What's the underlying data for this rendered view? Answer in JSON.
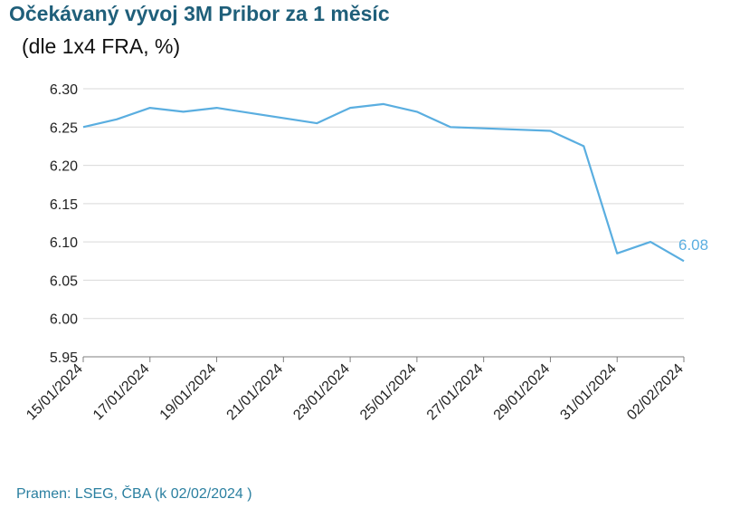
{
  "colors": {
    "title": "#1f5f7a",
    "line": "#5aaee0",
    "grid": "#d9d9d9",
    "source": "#2a7fa0"
  },
  "chart_data": {
    "type": "line",
    "title": "Očekávaný vývoj 3M Pribor za 1 měsíc",
    "subtitle": "(dle 1x4 FRA, %)",
    "source": "Pramen: LSEG, ČBA (k 02/02/2024 )",
    "ylim": [
      5.95,
      6.3
    ],
    "y_ticks": [
      "6.30",
      "6.25",
      "6.20",
      "6.15",
      "6.10",
      "6.05",
      "6.00",
      "5.95"
    ],
    "x_tick_labels": [
      "15/01/2024",
      "17/01/2024",
      "19/01/2024",
      "21/01/2024",
      "23/01/2024",
      "25/01/2024",
      "27/01/2024",
      "29/01/2024",
      "31/01/2024",
      "02/02/2024"
    ],
    "grid": "horizontal",
    "series": [
      {
        "x": [
          "15/01/2024",
          "16/01/2024",
          "17/01/2024",
          "18/01/2024",
          "19/01/2024",
          "22/01/2024",
          "23/01/2024",
          "24/01/2024",
          "25/01/2024",
          "26/01/2024",
          "29/01/2024",
          "30/01/2024",
          "31/01/2024",
          "01/02/2024",
          "02/02/2024"
        ],
        "values": [
          6.25,
          6.26,
          6.275,
          6.27,
          6.275,
          6.255,
          6.275,
          6.28,
          6.27,
          6.25,
          6.245,
          6.225,
          6.085,
          6.1,
          6.075
        ]
      }
    ],
    "last_value_label": "6.08"
  }
}
